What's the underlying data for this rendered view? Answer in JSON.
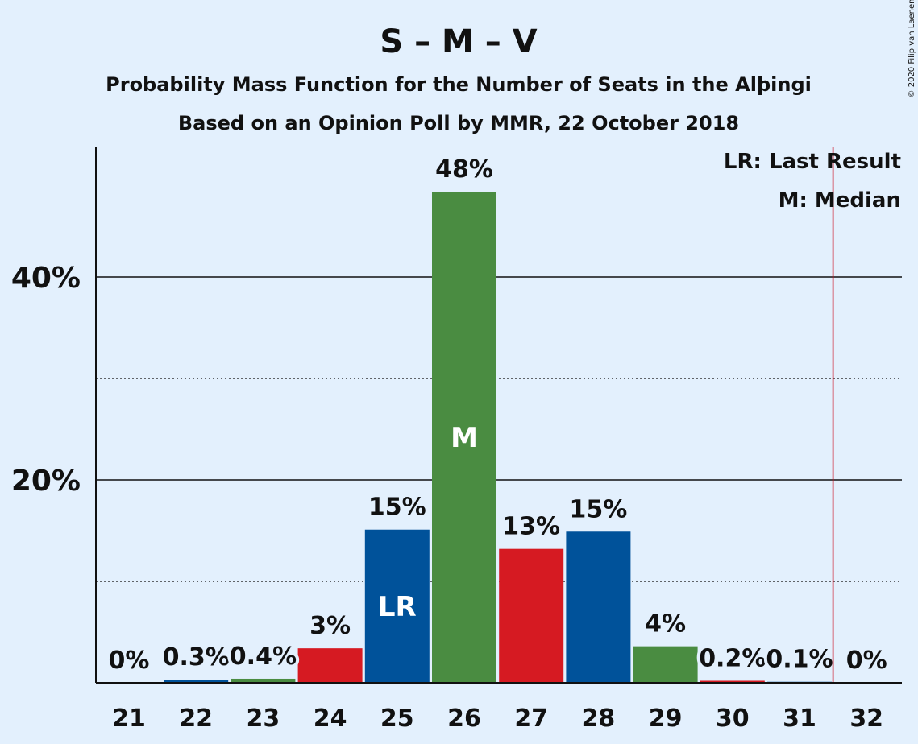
{
  "chart_data": {
    "type": "bar",
    "title": "S – M – V",
    "subtitle_lines": [
      "Probability Mass Function for the Number of Seats in the Alþingi",
      "Based on an Opinion Poll by MMR, 22 October 2018"
    ],
    "categories": [
      "21",
      "22",
      "23",
      "24",
      "25",
      "26",
      "27",
      "28",
      "29",
      "30",
      "31",
      "32"
    ],
    "values": [
      0,
      0.3,
      0.4,
      3.4,
      15.1,
      48.4,
      13.2,
      14.9,
      3.6,
      0.2,
      0.1,
      0
    ],
    "value_labels": [
      "0%",
      "0.3%",
      "0.4%",
      "3%",
      "15%",
      "48%",
      "13%",
      "15%",
      "4%",
      "0.2%",
      "0.1%",
      "0%"
    ],
    "bar_colors": [
      "#4a8c41",
      "#00529a",
      "#4a8c41",
      "#d61a22",
      "#00529a",
      "#4a8c41",
      "#d61a22",
      "#00529a",
      "#4a8c41",
      "#d61a22",
      "#00529a",
      "#4a8c41"
    ],
    "yticks": [
      {
        "value": 20,
        "label": "20%"
      },
      {
        "value": 40,
        "label": "40%"
      }
    ],
    "minor_gridlines": [
      10,
      30
    ],
    "ylim": [
      0,
      52
    ],
    "last_result_seat": "25",
    "last_result_marker": "LR",
    "median_seat": "26",
    "median_marker": "M",
    "majority_line_after_seat": "31",
    "majority_line_color": "#cc1122",
    "legend": {
      "position": "top-right",
      "lines": [
        "LR: Last Result",
        "M: Median"
      ]
    },
    "copyright": "© 2020 Filip van Laenen"
  }
}
